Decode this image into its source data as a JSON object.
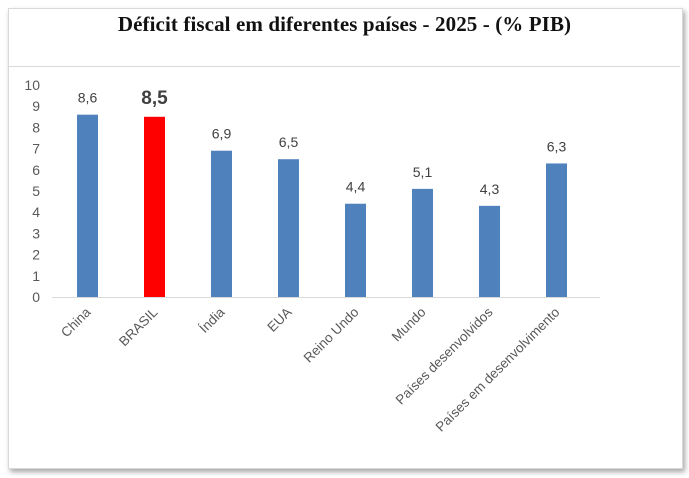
{
  "chart_data": {
    "type": "bar",
    "title": "Déficit fiscal em diferentes países - 2025 - (% PIB)",
    "xlabel": "",
    "ylabel": "",
    "ylim": [
      0,
      10
    ],
    "yticks": [
      0,
      1,
      2,
      3,
      4,
      5,
      6,
      7,
      8,
      9,
      10
    ],
    "grid": false,
    "legend": null,
    "categories": [
      "China",
      "BRASIL",
      "Índia",
      "EUA",
      "Reino Undo",
      "Mundo",
      "Países desenvolvidos",
      "Países em desenvolvimento"
    ],
    "values": [
      8.6,
      8.5,
      6.9,
      6.5,
      4.4,
      5.1,
      4.3,
      6.3
    ],
    "data_labels": [
      "8,6",
      "8,5",
      "6,9",
      "6,5",
      "4,4",
      "5,1",
      "4,3",
      "6,3"
    ],
    "highlight_index": 1,
    "colors": {
      "default_bar": "#4f81bd",
      "highlight_bar": "#ff0000",
      "axis_line": "#d9d9d9",
      "tick_text": "#595959",
      "label_text": "#404040"
    }
  }
}
